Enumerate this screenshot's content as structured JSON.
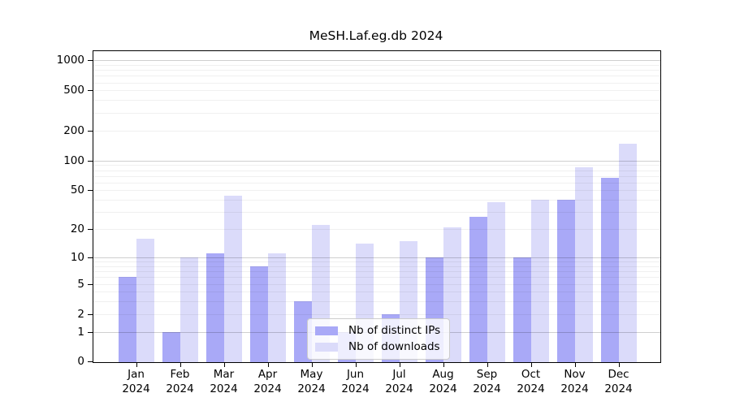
{
  "title": "MeSH.Laf.eg.db 2024",
  "legend": {
    "items": [
      {
        "label": "Nb of distinct IPs",
        "color": "#a9a9f7"
      },
      {
        "label": "Nb of downloads",
        "color": "#dbdbfa"
      }
    ]
  },
  "axes": {
    "y_tick_labels": [
      "0",
      "1",
      "2",
      "5",
      "10",
      "20",
      "50",
      "100",
      "200",
      "500",
      "1000"
    ],
    "x_year": "2024"
  },
  "chart_data": {
    "type": "bar",
    "title": "MeSH.Laf.eg.db 2024",
    "categories": [
      "Jan 2024",
      "Feb 2024",
      "Mar 2024",
      "Apr 2024",
      "May 2024",
      "Jun 2024",
      "Jul 2024",
      "Aug 2024",
      "Sep 2024",
      "Oct 2024",
      "Nov 2024",
      "Dec 2024"
    ],
    "series": [
      {
        "name": "Nb of distinct IPs",
        "color": "#a9a9f7",
        "values": [
          6,
          1,
          11,
          8,
          3,
          1,
          2,
          10,
          27,
          10,
          40,
          67
        ]
      },
      {
        "name": "Nb of downloads",
        "color": "#dbdbfa",
        "values": [
          16,
          10,
          44,
          11,
          22,
          14,
          15,
          21,
          38,
          40,
          85,
          148
        ]
      }
    ],
    "xlabel": "",
    "ylabel": "",
    "y_scale": "log1p",
    "y_ticks": [
      0,
      1,
      2,
      5,
      10,
      20,
      50,
      100,
      200,
      500,
      1000
    ],
    "ylim": [
      0,
      1230
    ],
    "grid": "horizontal-log-minor-and-major",
    "legend_position": "inside-bottom-center",
    "grid_major_at": [
      1,
      10,
      100,
      1000
    ]
  }
}
